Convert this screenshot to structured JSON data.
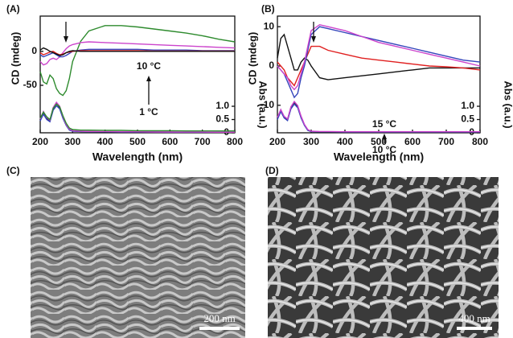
{
  "chart_data": [
    {
      "type": "line",
      "panel_label": "(A)",
      "xlabel": "Wavelength (nm)",
      "ylabel": "CD (mdeg)",
      "y2label": "Abs (a.u.)",
      "annotations": [
        "10 °C",
        "1 °C"
      ],
      "x": [
        200,
        210,
        220,
        230,
        240,
        250,
        260,
        270,
        280,
        290,
        300,
        325,
        350,
        400,
        450,
        500,
        550,
        600,
        650,
        700,
        750,
        800
      ],
      "xlim": [
        200,
        800
      ],
      "xticks": [
        200,
        300,
        400,
        500,
        600,
        700,
        800
      ],
      "ylim": [
        -120,
        52
      ],
      "yticks": [
        -50,
        0
      ],
      "y2lim": [
        0,
        4.4
      ],
      "y2ticks": [
        0,
        0.5,
        {
          "value": 1,
          "label": "1.0"
        }
      ],
      "series": [
        {
          "color": "#2e8b2e",
          "values": [
            -30,
            -45,
            -48,
            -35,
            -40,
            -55,
            -62,
            -65,
            -58,
            -40,
            -15,
            15,
            30,
            38,
            38,
            36,
            33,
            30,
            27,
            23,
            18,
            14
          ]
        },
        {
          "color": "#cc44cc",
          "values": [
            -15,
            -20,
            -18,
            -12,
            -10,
            -12,
            -8,
            -2,
            4,
            8,
            10,
            13,
            14,
            13,
            12,
            11,
            10,
            9,
            8,
            7,
            6,
            5
          ]
        },
        {
          "color": "#3344bb",
          "values": [
            -5,
            -8,
            -6,
            -4,
            -2,
            -5,
            -8,
            -8,
            -6,
            -3,
            0,
            2,
            3,
            3,
            3,
            3,
            2,
            2,
            2,
            1,
            1,
            1
          ]
        },
        {
          "color": "#e02020",
          "values": [
            -2,
            -5,
            -3,
            -1,
            0,
            -3,
            -5,
            -4,
            -2,
            -1,
            0,
            1,
            1,
            1,
            1,
            1,
            0.5,
            0.5,
            0.5,
            0.5,
            0.5,
            0.5
          ]
        },
        {
          "color": "#111111",
          "values": [
            2,
            5,
            3,
            0,
            -2,
            -4,
            -6,
            -5,
            -2,
            0,
            1,
            0,
            0,
            0,
            0,
            0,
            0,
            0,
            0,
            0,
            0,
            0
          ]
        },
        {
          "color": "#111111",
          "axis": "y2",
          "values": [
            0.5,
            0.75,
            0.55,
            0.45,
            0.9,
            1.1,
            0.95,
            0.6,
            0.3,
            0.12,
            0.07,
            0.05,
            0.05,
            0.04,
            0.04,
            0.03,
            0.03,
            0.03,
            0.02,
            0.02,
            0.02,
            0.02
          ]
        },
        {
          "color": "#3344bb",
          "axis": "y2",
          "values": [
            0.45,
            0.7,
            0.5,
            0.42,
            0.85,
            1.02,
            0.9,
            0.55,
            0.28,
            0.1,
            0.06,
            0.05,
            0.04,
            0.04,
            0.03,
            0.03,
            0.03,
            0.02,
            0.02,
            0.02,
            0.02,
            0.02
          ]
        },
        {
          "color": "#cc44cc",
          "axis": "y2",
          "values": [
            0.52,
            0.8,
            0.58,
            0.48,
            0.95,
            1.15,
            1.0,
            0.62,
            0.32,
            0.14,
            0.08,
            0.06,
            0.05,
            0.05,
            0.04,
            0.04,
            0.03,
            0.03,
            0.03,
            0.03,
            0.02,
            0.02
          ]
        },
        {
          "color": "#2e8b2e",
          "axis": "y2",
          "values": [
            0.55,
            0.78,
            0.6,
            0.5,
            0.92,
            1.08,
            0.98,
            0.65,
            0.36,
            0.18,
            0.12,
            0.1,
            0.1,
            0.09,
            0.09,
            0.08,
            0.08,
            0.08,
            0.07,
            0.07,
            0.07,
            0.07
          ]
        }
      ]
    },
    {
      "type": "line",
      "panel_label": "(B)",
      "xlabel": "Wavelength (nm)",
      "ylabel": "CD (mdeg)",
      "y2label": "Abs (a.u.)",
      "annotations": [
        "15 °C",
        "10 °C"
      ],
      "x": [
        200,
        210,
        220,
        230,
        240,
        250,
        260,
        270,
        280,
        290,
        300,
        325,
        350,
        400,
        450,
        500,
        550,
        600,
        650,
        700,
        750,
        800
      ],
      "xlim": [
        200,
        800
      ],
      "xticks": [
        200,
        300,
        400,
        500,
        600,
        700,
        800
      ],
      "ylim": [
        -17,
        12.7
      ],
      "yticks": [
        -10,
        0,
        10
      ],
      "y2lim": [
        0,
        4.4
      ],
      "y2ticks": [
        0,
        0.5,
        {
          "value": 1,
          "label": "1.0"
        }
      ],
      "series": [
        {
          "color": "#111111",
          "values": [
            2,
            7,
            8,
            5,
            2,
            -1,
            -1,
            1,
            2,
            1.5,
            0,
            -3,
            -3.5,
            -3,
            -2.5,
            -2,
            -1.5,
            -1,
            -0.5,
            -0.5,
            -0.5,
            -0.5
          ]
        },
        {
          "color": "#e02020",
          "values": [
            1,
            0,
            -1,
            -3,
            -4,
            -5,
            -3,
            -1,
            1,
            3,
            5,
            5,
            4,
            3,
            2,
            1.5,
            1,
            0.5,
            0,
            -0.2,
            -0.5,
            -1
          ]
        },
        {
          "color": "#3344bb",
          "values": [
            0,
            -1,
            -2,
            -4,
            -6,
            -8,
            -7,
            -3,
            0,
            4,
            8,
            10,
            9.5,
            8.5,
            7.5,
            6.5,
            5.5,
            4.5,
            3.5,
            2.5,
            1.5,
            1
          ]
        },
        {
          "color": "#cc44cc",
          "values": [
            0,
            -1,
            -2,
            -3,
            -5,
            -6,
            -5,
            -2,
            1,
            5,
            9,
            10.5,
            10,
            9,
            7.5,
            6,
            5,
            4,
            3,
            2,
            1,
            0
          ]
        },
        {
          "color": "#111111",
          "axis": "y2",
          "values": [
            0.55,
            0.85,
            0.6,
            0.5,
            0.95,
            1.15,
            1.0,
            0.6,
            0.3,
            0.1,
            0.05,
            0.04,
            0.04,
            0.03,
            0.03,
            0.03,
            0.03,
            0.03,
            0.03,
            0.03,
            0.03,
            0.03
          ]
        },
        {
          "color": "#3344bb",
          "axis": "y2",
          "values": [
            0.5,
            0.8,
            0.56,
            0.46,
            0.9,
            1.08,
            0.95,
            0.56,
            0.28,
            0.09,
            0.05,
            0.04,
            0.04,
            0.03,
            0.03,
            0.03,
            0.03,
            0.03,
            0.03,
            0.03,
            0.03,
            0.03
          ]
        },
        {
          "color": "#cc44cc",
          "axis": "y2",
          "values": [
            0.58,
            0.88,
            0.62,
            0.52,
            0.98,
            1.18,
            1.03,
            0.63,
            0.32,
            0.12,
            0.06,
            0.05,
            0.05,
            0.04,
            0.04,
            0.04,
            0.04,
            0.04,
            0.04,
            0.04,
            0.04,
            0.04
          ]
        }
      ]
    }
  ],
  "images": [
    {
      "label": "(C)",
      "scale_bar": "200 nm"
    },
    {
      "label": "(D)",
      "scale_bar": "400 nm"
    }
  ]
}
